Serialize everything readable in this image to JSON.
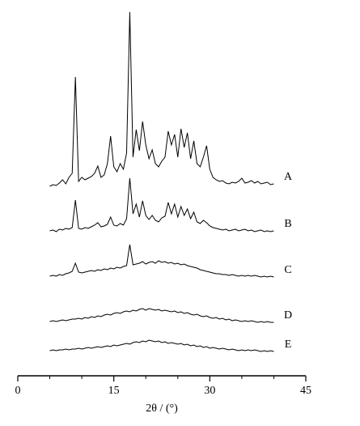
{
  "chart_data": {
    "type": "line",
    "xlabel": "2θ / (°)",
    "xlim": [
      0,
      45
    ],
    "xticks": [
      0,
      15,
      30,
      45
    ],
    "xminorticks": [
      5,
      10,
      20,
      25,
      35,
      40
    ],
    "ylim": [
      0,
      450
    ],
    "x": [
      5,
      5.5,
      6,
      6.5,
      7,
      7.5,
      8,
      8.5,
      9,
      9.5,
      10,
      10.5,
      11,
      11.5,
      12,
      12.5,
      13,
      13.5,
      14,
      14.5,
      15,
      15.5,
      16,
      16.5,
      17,
      17.5,
      18,
      18.5,
      19,
      19.5,
      20,
      20.5,
      21,
      21.5,
      22,
      22.5,
      23,
      23.5,
      24,
      24.5,
      25,
      25.5,
      26,
      26.5,
      27,
      27.5,
      28,
      28.5,
      29,
      29.5,
      30,
      30.5,
      31,
      31.5,
      32,
      32.5,
      33,
      33.5,
      34,
      34.5,
      35,
      35.5,
      36,
      36.5,
      37,
      37.5,
      38,
      38.5,
      39,
      39.5,
      40
    ],
    "series": [
      {
        "name": "A",
        "color": "#000000",
        "values": [
          234,
          236,
          235,
          238,
          242,
          237,
          245,
          250,
          369,
          240,
          245,
          242,
          244,
          246,
          250,
          259,
          245,
          248,
          262,
          296,
          258,
          252,
          262,
          255,
          275,
          449,
          270,
          304,
          278,
          314,
          285,
          268,
          279,
          262,
          258,
          265,
          270,
          302,
          285,
          298,
          270,
          305,
          282,
          300,
          268,
          290,
          262,
          258,
          270,
          284,
          255,
          245,
          242,
          240,
          241,
          238,
          237,
          239,
          238,
          240,
          244,
          238,
          239,
          241,
          238,
          240,
          237,
          238,
          239,
          236,
          237
        ]
      },
      {
        "name": "B",
        "color": "#000000",
        "values": [
          179,
          180,
          178,
          181,
          180,
          182,
          181,
          183,
          217,
          182,
          181,
          183,
          182,
          184,
          186,
          189,
          184,
          185,
          187,
          196,
          186,
          185,
          188,
          186,
          194,
          244,
          200,
          212,
          196,
          216,
          198,
          193,
          198,
          192,
          190,
          195,
          197,
          214,
          200,
          212,
          196,
          209,
          198,
          206,
          194,
          202,
          190,
          188,
          192,
          189,
          185,
          183,
          182,
          181,
          180,
          181,
          179,
          180,
          181,
          179,
          180,
          181,
          179,
          180,
          178,
          179,
          180,
          178,
          179,
          178,
          179
        ]
      },
      {
        "name": "C",
        "color": "#000000",
        "values": [
          123,
          124,
          123,
          125,
          124,
          126,
          127,
          129,
          139,
          128,
          127,
          128,
          129,
          130,
          129,
          131,
          130,
          132,
          131,
          133,
          132,
          134,
          133,
          135,
          136,
          162,
          137,
          138,
          139,
          141,
          138,
          140,
          141,
          139,
          142,
          140,
          141,
          139,
          140,
          138,
          139,
          137,
          138,
          136,
          135,
          134,
          133,
          131,
          130,
          129,
          128,
          127,
          126,
          126,
          125,
          125,
          124,
          125,
          124,
          123,
          124,
          123,
          124,
          123,
          124,
          123,
          122,
          123,
          122,
          123,
          122
        ]
      },
      {
        "name": "D",
        "color": "#000000",
        "values": [
          67,
          68,
          67,
          68,
          69,
          68,
          69,
          70,
          70,
          71,
          70,
          72,
          71,
          73,
          72,
          74,
          73,
          75,
          76,
          75,
          77,
          78,
          77,
          79,
          80,
          79,
          81,
          80,
          82,
          83,
          81,
          83,
          82,
          81,
          82,
          80,
          81,
          80,
          79,
          80,
          78,
          79,
          77,
          78,
          76,
          75,
          76,
          74,
          73,
          74,
          72,
          71,
          72,
          70,
          71,
          69,
          70,
          68,
          69,
          68,
          67,
          68,
          67,
          68,
          67,
          66,
          67,
          66,
          67,
          66,
          66
        ]
      },
      {
        "name": "E",
        "color": "#000000",
        "values": [
          31,
          32,
          31,
          32,
          32,
          33,
          32,
          33,
          33,
          34,
          33,
          34,
          35,
          34,
          35,
          36,
          35,
          36,
          37,
          36,
          38,
          37,
          38,
          39,
          40,
          39,
          41,
          42,
          41,
          43,
          42,
          44,
          43,
          42,
          43,
          41,
          42,
          40,
          41,
          40,
          39,
          40,
          38,
          39,
          37,
          38,
          36,
          37,
          35,
          36,
          34,
          35,
          34,
          33,
          34,
          33,
          32,
          33,
          32,
          31,
          32,
          31,
          32,
          31,
          32,
          31,
          30,
          31,
          30,
          31,
          30
        ]
      }
    ]
  }
}
